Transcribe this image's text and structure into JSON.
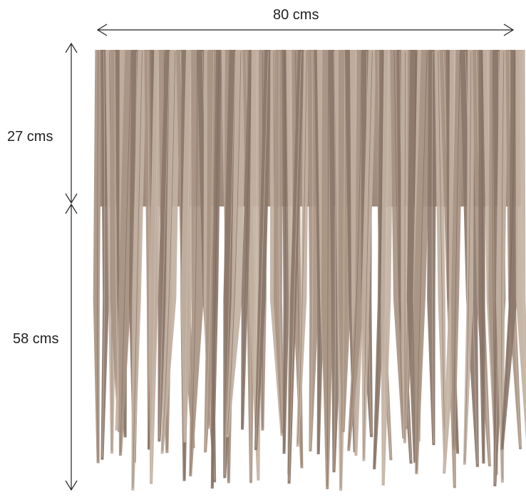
{
  "dimensions": {
    "width_label": "80 cms",
    "top_section_label": "27 cms",
    "bottom_section_label": "58 cms"
  },
  "colors": {
    "fringe": "#a89483",
    "fringe_dark": "#8b776a",
    "fringe_light": "#c2b1a2",
    "arrow": "#222222"
  },
  "image": {
    "subject": "thatch fringe panel",
    "description": ""
  }
}
